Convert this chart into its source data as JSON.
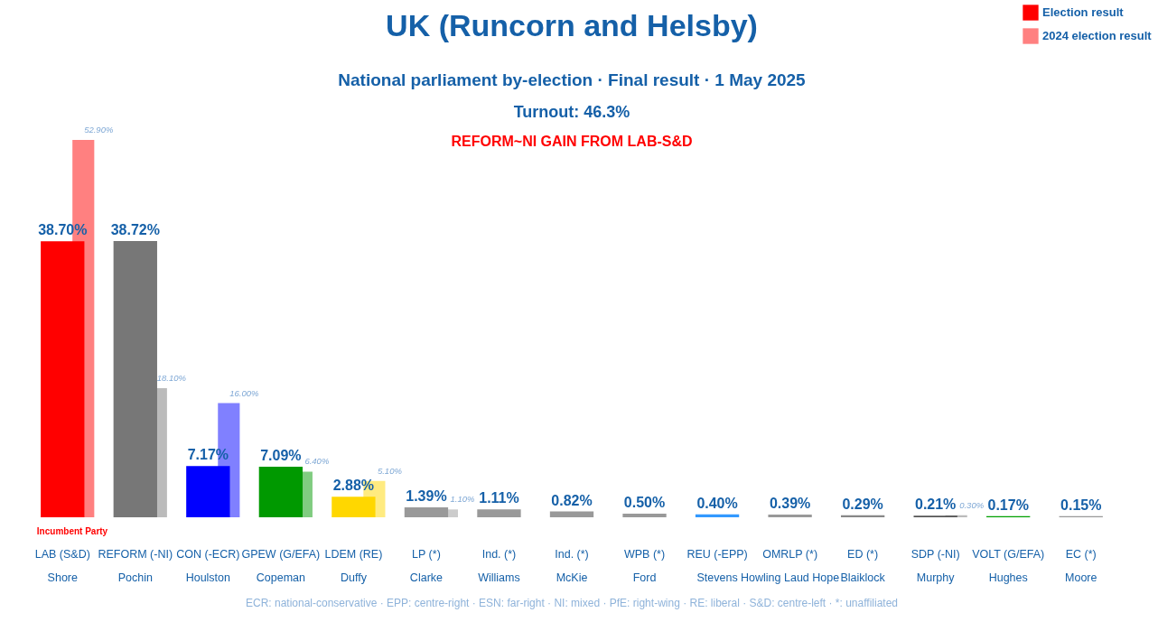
{
  "chart_data": {
    "type": "bar",
    "title": "UK (Runcorn and Helsby)",
    "subtitle": "National parliament by-election · Final result · 1 May 2025",
    "categories": [
      "LAB (S&D)\nShore",
      "REFORM (-NI)\nPochin",
      "CON (-ECR)\nHoulston",
      "GPEW (G/EFA)\nCopeman",
      "LDEM (RE)\nDuffy",
      "LP (*)\nClarke",
      "Ind. (*)\nWilliams",
      "Ind. (*)\nMcKie",
      "WPB (*)\nFord",
      "REU (-EPP)\nStevens",
      "OMRLP (*)\nHowling Laud Hope",
      "ED (*)\nBlaiklock",
      "SDP (-NI)\nMurphy",
      "VOLT (G/EFA)\nHughes",
      "EC (*)\nMoore"
    ],
    "series": [
      {
        "name": "Election result",
        "colors": [
          "#ff0000",
          "#777777",
          "#0000ff",
          "#009900",
          "#ffd700",
          "#999999",
          "#999999",
          "#999999",
          "#999999",
          "#3399ff",
          "#999999",
          "#888888",
          "#555555",
          "#00a000",
          "#999999"
        ],
        "values": [
          38.7,
          38.72,
          7.17,
          7.09,
          2.88,
          1.39,
          1.11,
          0.82,
          0.5,
          0.4,
          0.39,
          0.29,
          0.21,
          0.17,
          0.15
        ],
        "value_labels": [
          "38.70%",
          "38.72%",
          "7.17%",
          "7.09%",
          "2.88%",
          "1.39%",
          "1.11%",
          "0.82%",
          "0.50%",
          "0.40%",
          "0.39%",
          "0.29%",
          "0.21%",
          "0.17%",
          "0.15%"
        ]
      },
      {
        "name": "2024 election result",
        "colors": [
          "#ff8080",
          "#bbbbbb",
          "#8080ff",
          "#80cc80",
          "#ffeb80",
          "#cccccc",
          null,
          null,
          null,
          null,
          null,
          null,
          "#bbbbbb",
          null,
          null
        ],
        "values": [
          52.9,
          18.1,
          16.0,
          6.4,
          5.1,
          1.1,
          null,
          null,
          null,
          null,
          null,
          null,
          0.3,
          null,
          null
        ],
        "value_labels": [
          "52.90%",
          "18.10%",
          "16.00%",
          "6.40%",
          "5.10%",
          "1.10%",
          null,
          null,
          null,
          null,
          null,
          null,
          "0.30%",
          null,
          null
        ]
      }
    ],
    "legend": "top right",
    "annotations": [
      "Turnout: 46.3%",
      "REFORM~NI GAIN FROM LAB-S&D",
      "Incumbent Party",
      "ECR: national-conservative · EPP: centre-right · ESN: far-right · NI: mixed · PfE: right-wing · RE: liberal · S&D: centre-left · *: unaffiliated"
    ]
  }
}
